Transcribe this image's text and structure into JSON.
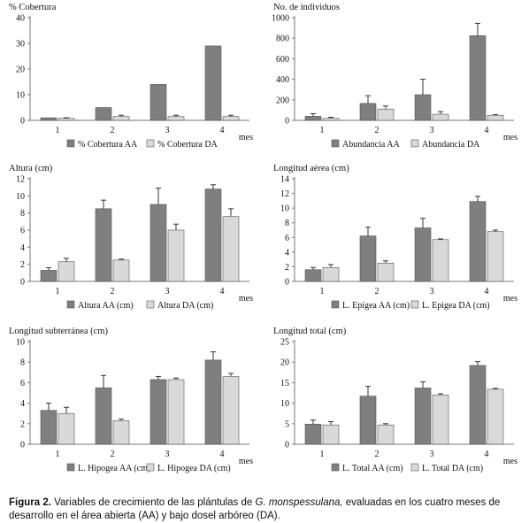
{
  "caption": {
    "label": "Figura 2.",
    "text_before": " Variables de crecimiento de las plántulas de ",
    "species": "G. monspessulana,",
    "text_after": " evaluadas en los cuatro meses de desarrollo en el área abierta (AA) y bajo dosel arbóreo (DA)."
  },
  "colors": {
    "aa": "#7f7f7f",
    "da": "#d9d9d9",
    "stroke": "#555555"
  },
  "chart_data": [
    {
      "type": "bar",
      "title": "% Cobertura",
      "xlabel": "mes",
      "categories": [
        "1",
        "2",
        "3",
        "4"
      ],
      "ylim": [
        0,
        40
      ],
      "yticks": [
        "0",
        "10",
        "20",
        "30",
        "40"
      ],
      "series": [
        {
          "name": "% Cobertura AA",
          "values": [
            1.0,
            5.0,
            14.0,
            29.0
          ],
          "errors": [
            0,
            0,
            0,
            0
          ]
        },
        {
          "name": "% Cobertura DA",
          "values": [
            0.8,
            1.5,
            1.5,
            1.5
          ],
          "errors": [
            0.2,
            0.5,
            0.5,
            0.5
          ]
        }
      ]
    },
    {
      "type": "bar",
      "title": "No. de individuos",
      "xlabel": "mes",
      "categories": [
        "1",
        "2",
        "3",
        "4"
      ],
      "ylim": [
        0,
        1000
      ],
      "yticks": [
        "0",
        "200",
        "400",
        "600",
        "800",
        "1000"
      ],
      "series": [
        {
          "name": "Abundancia AA",
          "values": [
            40,
            165,
            250,
            825
          ],
          "errors": [
            25,
            75,
            150,
            120
          ]
        },
        {
          "name": "Abundancia DA",
          "values": [
            20,
            110,
            60,
            50
          ],
          "errors": [
            10,
            30,
            25,
            5
          ]
        }
      ]
    },
    {
      "type": "bar",
      "title": "Altura (cm)",
      "xlabel": "mes",
      "categories": [
        "1",
        "2",
        "3",
        "4"
      ],
      "ylim": [
        0,
        12
      ],
      "yticks": [
        "0",
        "2",
        "4",
        "6",
        "8",
        "10",
        "12"
      ],
      "series": [
        {
          "name": "Altura  AA  (cm)",
          "values": [
            1.3,
            8.5,
            9.0,
            10.8
          ],
          "errors": [
            0.3,
            1.0,
            1.9,
            0.5
          ]
        },
        {
          "name": "Altura DA  (cm)",
          "values": [
            2.3,
            2.5,
            6.0,
            7.6
          ],
          "errors": [
            0.4,
            0.1,
            0.7,
            0.9
          ]
        }
      ]
    },
    {
      "type": "bar",
      "title": "Longitud  aérea (cm)",
      "xlabel": "mes",
      "categories": [
        "1",
        "2",
        "3",
        "4"
      ],
      "ylim": [
        0,
        14
      ],
      "yticks": [
        "0",
        "2",
        "4",
        "6",
        "8",
        "10",
        "12",
        "14"
      ],
      "series": [
        {
          "name": "L. Epigea AA  (cm)",
          "values": [
            1.6,
            6.2,
            7.3,
            10.9
          ],
          "errors": [
            0.3,
            1.2,
            1.3,
            0.7
          ]
        },
        {
          "name": "L. Epigea DA  (cm)",
          "values": [
            1.9,
            2.5,
            5.7,
            6.8
          ],
          "errors": [
            0.4,
            0.3,
            0.1,
            0.2
          ]
        }
      ]
    },
    {
      "type": "bar",
      "title": "Longitud  subterránea  (cm)",
      "xlabel": "mes",
      "categories": [
        "1",
        "2",
        "3",
        "4"
      ],
      "ylim": [
        0,
        10
      ],
      "yticks": [
        "0",
        "2",
        "4",
        "6",
        "8",
        "10"
      ],
      "series": [
        {
          "name": "L. Hipogea AA (cm)",
          "values": [
            3.3,
            5.5,
            6.3,
            8.2
          ],
          "errors": [
            0.7,
            1.2,
            0.3,
            0.8
          ]
        },
        {
          "name": "L. Hipogea DA (cm)",
          "values": [
            3.0,
            2.3,
            6.3,
            6.6
          ],
          "errors": [
            0.6,
            0.15,
            0.15,
            0.3
          ]
        }
      ]
    },
    {
      "type": "bar",
      "title": "Longitud  total  (cm)",
      "xlabel": "mes",
      "categories": [
        "1",
        "2",
        "3",
        "4"
      ],
      "ylim": [
        0,
        25
      ],
      "yticks": [
        "0",
        "5",
        "10",
        "15",
        "20",
        "25"
      ],
      "series": [
        {
          "name": "L. Total AA  (cm)",
          "values": [
            4.9,
            11.7,
            13.7,
            19.2
          ],
          "errors": [
            1.0,
            2.4,
            1.5,
            0.9
          ]
        },
        {
          "name": "L. Total DA  (cm)",
          "values": [
            4.7,
            4.7,
            12.0,
            13.4
          ],
          "errors": [
            0.8,
            0.3,
            0.3,
            0.2
          ]
        }
      ]
    }
  ]
}
